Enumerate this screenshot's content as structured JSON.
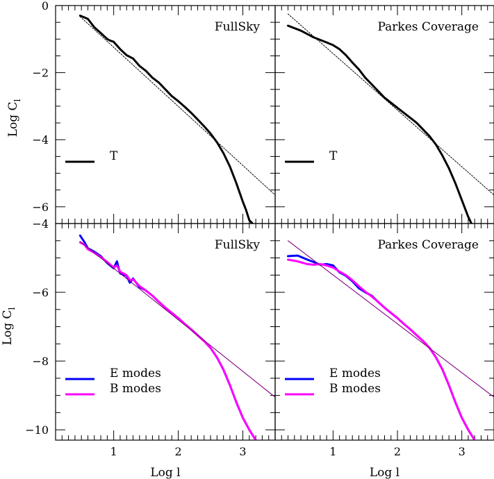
{
  "figure": {
    "x_axis_label": "Log l",
    "y_axis_label_main": "Log C",
    "y_axis_label_sub": "l"
  },
  "chart_data": [
    {
      "type": "line",
      "title": "FullSky",
      "xlabel": "",
      "ylabel": "Log C_l",
      "xlim": [
        0.1,
        3.5
      ],
      "ylim": [
        -6.5,
        0
      ],
      "yticks": [
        "0",
        "-2",
        "-4",
        "-6"
      ],
      "xticks": [],
      "series": [
        {
          "name": "T",
          "color": "#000000",
          "x": [
            0.48,
            0.6,
            0.7,
            0.8,
            0.9,
            0.95,
            1.0,
            1.1,
            1.2,
            1.3,
            1.4,
            1.5,
            1.6,
            1.7,
            1.8,
            1.9,
            2.0,
            2.1,
            2.2,
            2.3,
            2.4,
            2.5,
            2.6,
            2.7,
            2.8,
            2.9,
            3.0,
            3.05,
            3.1,
            3.15
          ],
          "y": [
            -0.3,
            -0.4,
            -0.65,
            -0.82,
            -1.0,
            -1.05,
            -1.08,
            -1.3,
            -1.48,
            -1.58,
            -1.8,
            -1.95,
            -2.15,
            -2.3,
            -2.5,
            -2.7,
            -2.85,
            -3.02,
            -3.2,
            -3.4,
            -3.6,
            -3.82,
            -4.08,
            -4.4,
            -4.8,
            -5.3,
            -5.85,
            -6.1,
            -6.4,
            -6.5
          ]
        },
        {
          "name": "",
          "color": "#000000",
          "style": "dotted",
          "x": [
            0.48,
            3.5
          ],
          "y": [
            -0.33,
            -5.65
          ]
        }
      ]
    },
    {
      "type": "line",
      "title": "Parkes Coverage",
      "xlabel": "",
      "ylabel": "",
      "xlim": [
        0.1,
        3.5
      ],
      "ylim": [
        -6.5,
        0
      ],
      "yticks": [],
      "xticks": [],
      "series": [
        {
          "name": "T",
          "color": "#000000",
          "x": [
            0.3,
            0.5,
            0.7,
            0.9,
            1.0,
            1.1,
            1.2,
            1.3,
            1.4,
            1.5,
            1.6,
            1.7,
            1.8,
            1.9,
            2.0,
            2.1,
            2.2,
            2.3,
            2.4,
            2.5,
            2.6,
            2.7,
            2.8,
            2.9,
            3.0,
            3.05,
            3.1,
            3.15
          ],
          "y": [
            -0.6,
            -0.75,
            -0.95,
            -1.1,
            -1.18,
            -1.3,
            -1.48,
            -1.7,
            -1.9,
            -2.15,
            -2.35,
            -2.55,
            -2.75,
            -2.9,
            -3.05,
            -3.2,
            -3.35,
            -3.5,
            -3.7,
            -3.9,
            -4.15,
            -4.48,
            -4.85,
            -5.3,
            -5.8,
            -6.05,
            -6.3,
            -6.5
          ]
        },
        {
          "name": "",
          "color": "#000000",
          "style": "dotted",
          "x": [
            0.3,
            3.5
          ],
          "y": [
            -0.25,
            -5.65
          ]
        }
      ]
    },
    {
      "type": "line",
      "title": "FullSky",
      "xlabel": "Log l",
      "ylabel": "Log C_l",
      "xlim": [
        0.1,
        3.5
      ],
      "ylim": [
        -10.3,
        -4
      ],
      "yticks": [
        "-4",
        "-6",
        "-8",
        "-10"
      ],
      "xticks": [
        "1",
        "2",
        "3"
      ],
      "series": [
        {
          "name": "E modes",
          "color": "#0000ff",
          "x": [
            0.48,
            0.55,
            0.6,
            0.7,
            0.8,
            0.9,
            1.0,
            1.05,
            1.1,
            1.2,
            1.25,
            1.3,
            1.4,
            1.5,
            1.6,
            1.7,
            1.8,
            1.9,
            2.0,
            2.1,
            2.2,
            2.3,
            2.4,
            2.5,
            2.6,
            2.7,
            2.8,
            2.9,
            3.0,
            3.1,
            3.2
          ],
          "y": [
            -4.35,
            -4.55,
            -4.72,
            -4.82,
            -4.95,
            -5.15,
            -5.3,
            -5.1,
            -5.45,
            -5.52,
            -5.72,
            -5.6,
            -5.85,
            -5.95,
            -6.1,
            -6.28,
            -6.45,
            -6.6,
            -6.75,
            -6.92,
            -7.08,
            -7.25,
            -7.42,
            -7.62,
            -7.9,
            -8.25,
            -8.7,
            -9.2,
            -9.65,
            -10.0,
            -10.3
          ]
        },
        {
          "name": "B modes",
          "color": "#ff00ff",
          "x": [
            0.48,
            0.55,
            0.6,
            0.7,
            0.8,
            0.9,
            1.0,
            1.05,
            1.1,
            1.2,
            1.25,
            1.3,
            1.4,
            1.5,
            1.6,
            1.7,
            1.8,
            1.9,
            2.0,
            2.1,
            2.2,
            2.3,
            2.4,
            2.5,
            2.6,
            2.7,
            2.8,
            2.9,
            3.0,
            3.1,
            3.2
          ],
          "y": [
            -4.55,
            -4.62,
            -4.75,
            -4.85,
            -4.98,
            -5.12,
            -5.28,
            -5.22,
            -5.4,
            -5.5,
            -5.65,
            -5.62,
            -5.82,
            -5.95,
            -6.1,
            -6.28,
            -6.45,
            -6.6,
            -6.75,
            -6.92,
            -7.08,
            -7.25,
            -7.42,
            -7.62,
            -7.9,
            -8.25,
            -8.7,
            -9.2,
            -9.65,
            -10.0,
            -10.3
          ]
        },
        {
          "name": "",
          "color": "#800080",
          "style": "thin",
          "x": [
            0.48,
            3.5
          ],
          "y": [
            -4.52,
            -9.05
          ]
        }
      ]
    },
    {
      "type": "line",
      "title": "Parkes Coverage",
      "xlabel": "Log l",
      "ylabel": "",
      "xlim": [
        0.1,
        3.5
      ],
      "ylim": [
        -10.3,
        -4
      ],
      "yticks": [],
      "xticks": [
        "1",
        "2",
        "3"
      ],
      "series": [
        {
          "name": "E modes",
          "color": "#0000ff",
          "x": [
            0.3,
            0.45,
            0.6,
            0.7,
            0.8,
            0.9,
            1.0,
            1.1,
            1.2,
            1.3,
            1.4,
            1.5,
            1.6,
            1.7,
            1.8,
            1.9,
            2.0,
            2.1,
            2.2,
            2.3,
            2.4,
            2.5,
            2.6,
            2.7,
            2.8,
            2.9,
            3.0,
            3.1,
            3.2
          ],
          "y": [
            -4.95,
            -4.93,
            -5.05,
            -5.12,
            -5.2,
            -5.18,
            -5.22,
            -5.42,
            -5.52,
            -5.68,
            -5.88,
            -6.0,
            -6.1,
            -6.28,
            -6.45,
            -6.6,
            -6.75,
            -6.92,
            -7.08,
            -7.25,
            -7.42,
            -7.62,
            -7.9,
            -8.25,
            -8.7,
            -9.2,
            -9.65,
            -10.0,
            -10.3
          ]
        },
        {
          "name": "B modes",
          "color": "#ff00ff",
          "x": [
            0.3,
            0.45,
            0.6,
            0.7,
            0.8,
            0.9,
            1.0,
            1.1,
            1.2,
            1.3,
            1.4,
            1.5,
            1.6,
            1.7,
            1.8,
            1.9,
            2.0,
            2.1,
            2.2,
            2.3,
            2.4,
            2.5,
            2.6,
            2.7,
            2.8,
            2.9,
            3.0,
            3.1,
            3.2
          ],
          "y": [
            -5.05,
            -5.1,
            -5.18,
            -5.2,
            -5.18,
            -5.22,
            -5.28,
            -5.4,
            -5.5,
            -5.65,
            -5.82,
            -5.98,
            -6.12,
            -6.28,
            -6.45,
            -6.6,
            -6.75,
            -6.92,
            -7.08,
            -7.25,
            -7.42,
            -7.62,
            -7.9,
            -8.25,
            -8.7,
            -9.2,
            -9.65,
            -10.0,
            -10.3
          ]
        },
        {
          "name": "",
          "color": "#800080",
          "style": "thin",
          "x": [
            0.3,
            3.5
          ],
          "y": [
            -4.5,
            -9.05
          ]
        }
      ]
    }
  ]
}
